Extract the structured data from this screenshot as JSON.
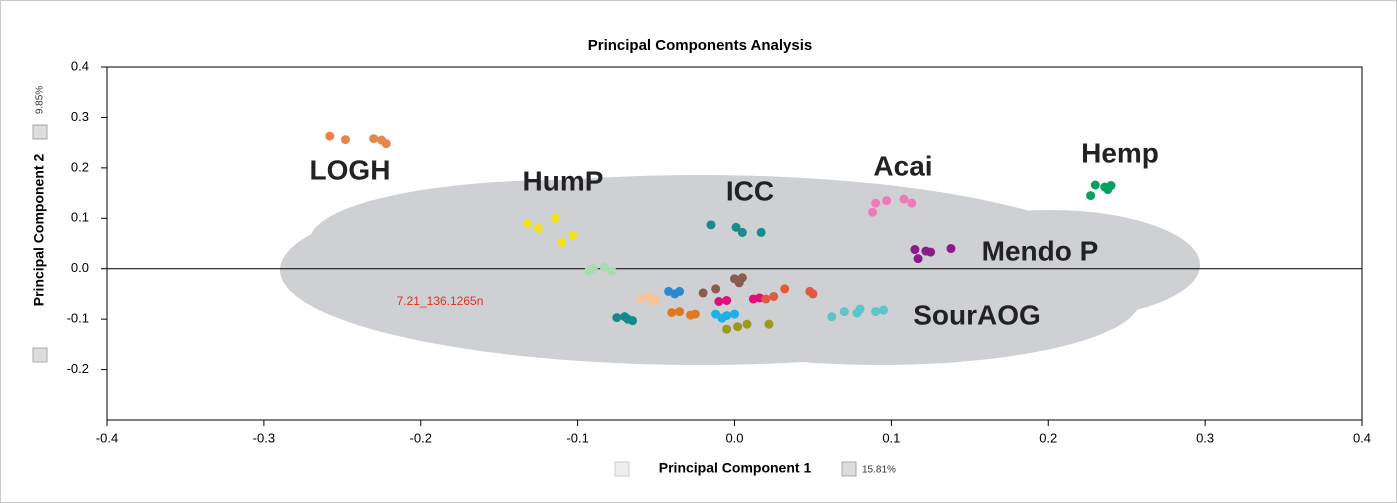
{
  "chart_data": {
    "type": "scatter",
    "title": "Principal Components Analysis",
    "x_label": "Principal Component 1",
    "x_variance": "15.81%",
    "y_label": "Principal Component 2",
    "y_variance": "9.85%",
    "xlim": [
      -0.4,
      0.4
    ],
    "ylim": [
      -0.3,
      0.4
    ],
    "xticks": [
      -0.4,
      -0.3,
      -0.2,
      -0.1,
      {
        "value": 0,
        "label": "0.0"
      },
      0.1,
      0.2,
      0.3,
      0.4
    ],
    "yticks": [
      -0.2,
      -0.1,
      {
        "value": 0,
        "label": "0.0"
      },
      0.1,
      0.2,
      0.3,
      0.4
    ],
    "annotations": [
      "7.21_136.1265n"
    ],
    "series": [
      {
        "name": "LOGH",
        "color": "#e8854a",
        "x": [
          -0.258,
          -0.248,
          -0.23,
          -0.225,
          -0.222
        ],
        "y": [
          0.263,
          0.256,
          0.258,
          0.255,
          0.248
        ]
      },
      {
        "name": "HumP",
        "color": "#f2e21e",
        "x": [
          -0.132,
          -0.125,
          -0.114,
          -0.11,
          -0.103
        ],
        "y": [
          0.09,
          0.08,
          0.1,
          0.052,
          0.066
        ]
      },
      {
        "name": "ICC",
        "color": "#1a8a8a",
        "x": [
          -0.015,
          0.001,
          0.005,
          0.017
        ],
        "y": [
          0.087,
          0.082,
          0.072,
          0.072
        ]
      },
      {
        "name": "Acai",
        "color": "#f07ab8",
        "x": [
          0.088,
          0.09,
          0.097,
          0.108,
          0.113
        ],
        "y": [
          0.112,
          0.13,
          0.135,
          0.138,
          0.13
        ]
      },
      {
        "name": "Hemp",
        "color": "#0aa060",
        "x": [
          0.227,
          0.23,
          0.236,
          0.24,
          0.238
        ],
        "y": [
          0.145,
          0.166,
          0.162,
          0.165,
          0.157
        ]
      },
      {
        "name": "Mendo P",
        "color": "#8b1a8a",
        "x": [
          0.115,
          0.117,
          0.122,
          0.125,
          0.138
        ],
        "y": [
          0.038,
          0.02,
          0.035,
          0.033,
          0.04
        ]
      },
      {
        "name": "SourAOG",
        "color": "#5bc5cc",
        "x": [
          0.062,
          0.07,
          0.078,
          0.08,
          0.09,
          0.095
        ],
        "y": [
          -0.095,
          -0.085,
          -0.088,
          -0.08,
          -0.085,
          -0.082
        ]
      },
      {
        "color": "#a8dcb0",
        "x": [
          -0.093,
          -0.083,
          -0.078,
          -0.09
        ],
        "y": [
          -0.005,
          0.003,
          -0.005,
          0.0
        ]
      },
      {
        "color": "#138a8a",
        "x": [
          -0.075,
          -0.07,
          -0.065,
          -0.068
        ],
        "y": [
          -0.097,
          -0.095,
          -0.103,
          -0.1
        ]
      },
      {
        "color": "#f5c49a",
        "x": [
          -0.06,
          -0.055,
          -0.05,
          -0.052
        ],
        "y": [
          -0.06,
          -0.055,
          -0.06,
          -0.065
        ]
      },
      {
        "color": "#2a8ad0",
        "x": [
          -0.042,
          -0.038,
          -0.035
        ],
        "y": [
          -0.045,
          -0.05,
          -0.045
        ]
      },
      {
        "color": "#e07820",
        "x": [
          -0.04,
          -0.035,
          -0.028,
          -0.025
        ],
        "y": [
          -0.087,
          -0.085,
          -0.092,
          -0.09
        ]
      },
      {
        "color": "#20b0e8",
        "x": [
          -0.012,
          -0.005,
          0.0,
          -0.008
        ],
        "y": [
          -0.09,
          -0.093,
          -0.09,
          -0.098
        ]
      },
      {
        "color": "#8b5a50",
        "x": [
          -0.02,
          -0.012,
          0.0,
          0.005,
          0.003
        ],
        "y": [
          -0.048,
          -0.04,
          -0.02,
          -0.018,
          -0.028
        ]
      },
      {
        "color": "#e0107a",
        "x": [
          -0.01,
          -0.005,
          0.012,
          0.016
        ],
        "y": [
          -0.065,
          -0.063,
          -0.06,
          -0.058
        ]
      },
      {
        "color": "#9a9a20",
        "x": [
          -0.005,
          0.002,
          0.008,
          0.022
        ],
        "y": [
          -0.12,
          -0.115,
          -0.11,
          -0.11
        ]
      },
      {
        "color": "#e05a40",
        "x": [
          0.02,
          0.025,
          0.032,
          0.048,
          0.05
        ],
        "y": [
          -0.06,
          -0.055,
          -0.04,
          -0.045,
          -0.05
        ]
      }
    ]
  }
}
